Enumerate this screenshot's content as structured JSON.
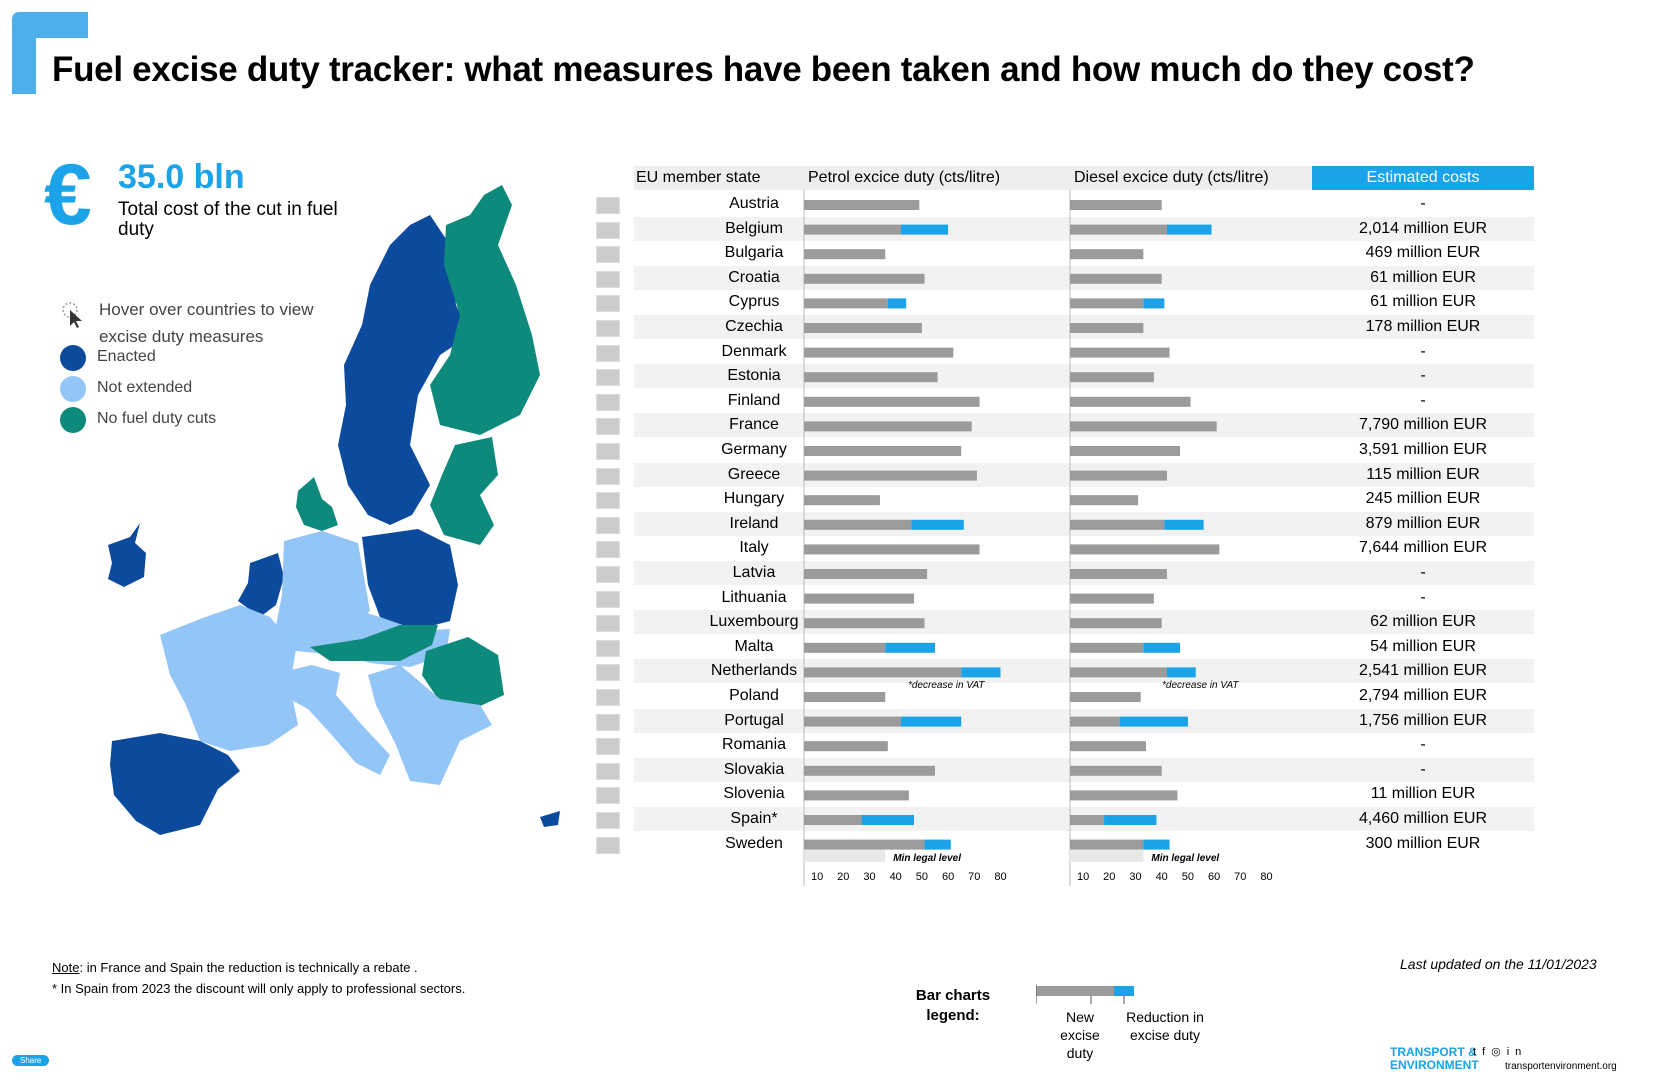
{
  "header": {
    "title": "Fuel excise duty tracker: what measures have been taken and how much do they cost?"
  },
  "summary": {
    "total_value": "35.0 bln",
    "total_label": "Total cost of the cut in fuel duty"
  },
  "map_legend": {
    "hover_text": "Hover over countries to view excise duty measures",
    "items": [
      {
        "label": "Enacted",
        "color": "#0b4a9c"
      },
      {
        "label": "Not extended",
        "color": "#93c5f7"
      },
      {
        "label": "No fuel duty cuts",
        "color": "#0e8a7c"
      }
    ]
  },
  "table": {
    "headers": {
      "country": "EU member state",
      "petrol": "Petrol excice duty (cts/litre)",
      "diesel": "Diesel excice duty (cts/litre)",
      "cost": "Estimated costs"
    },
    "rows": [
      {
        "country": "Austria",
        "cost": "-"
      },
      {
        "country": "Belgium",
        "cost": "2,014 million EUR"
      },
      {
        "country": "Bulgaria",
        "cost": "469 million EUR"
      },
      {
        "country": "Croatia",
        "cost": "61 million EUR"
      },
      {
        "country": "Cyprus",
        "cost": "61 million EUR"
      },
      {
        "country": "Czechia",
        "cost": "178 million EUR"
      },
      {
        "country": "Denmark",
        "cost": "-"
      },
      {
        "country": "Estonia",
        "cost": "-"
      },
      {
        "country": "Finland",
        "cost": "-"
      },
      {
        "country": "France",
        "cost": "7,790 million EUR"
      },
      {
        "country": "Germany",
        "cost": "3,591 million EUR"
      },
      {
        "country": "Greece",
        "cost": "115 million EUR"
      },
      {
        "country": "Hungary",
        "cost": "245 million EUR"
      },
      {
        "country": "Ireland",
        "cost": "879 million EUR"
      },
      {
        "country": "Italy",
        "cost": "7,644 million EUR"
      },
      {
        "country": "Latvia",
        "cost": "-"
      },
      {
        "country": "Lithuania",
        "cost": "-"
      },
      {
        "country": "Luxembourg",
        "cost": "62 million EUR"
      },
      {
        "country": "Malta",
        "cost": "54 million EUR"
      },
      {
        "country": "Netherlands",
        "cost": "2,541 million EUR"
      },
      {
        "country": "Poland",
        "cost": "2,794 million EUR"
      },
      {
        "country": "Portugal",
        "cost": "1,756 million EUR"
      },
      {
        "country": "Romania",
        "cost": "-"
      },
      {
        "country": "Slovakia",
        "cost": "-"
      },
      {
        "country": "Slovenia",
        "cost": "11 million EUR"
      },
      {
        "country": "Spain*",
        "cost": "4,460 million EUR"
      },
      {
        "country": "Sweden",
        "cost": "300 million EUR"
      }
    ],
    "vat_note": "*decrease in VAT",
    "min_legal_level_label": "Min legal level"
  },
  "chart_data": {
    "type": "bar",
    "categories": [
      "Austria",
      "Belgium",
      "Bulgaria",
      "Croatia",
      "Cyprus",
      "Czechia",
      "Denmark",
      "Estonia",
      "Finland",
      "France",
      "Germany",
      "Greece",
      "Hungary",
      "Ireland",
      "Italy",
      "Latvia",
      "Lithuania",
      "Luxembourg",
      "Malta",
      "Netherlands",
      "Poland",
      "Portugal",
      "Romania",
      "Slovakia",
      "Slovenia",
      "Spain*",
      "Sweden"
    ],
    "panels": [
      {
        "title": "Petrol excice duty (cts/litre)",
        "min_legal_level": 36,
        "xlim": [
          5,
          85
        ],
        "xticks": [
          10,
          20,
          30,
          40,
          50,
          60,
          70,
          80
        ],
        "series": [
          {
            "name": "New excise duty",
            "values": [
              49,
              42,
              36,
              51,
              37,
              50,
              62,
              56,
              72,
              69,
              65,
              71,
              34,
              46,
              72,
              52,
              47,
              51,
              36,
              65,
              36,
              42,
              37,
              55,
              45,
              27,
              51
            ]
          },
          {
            "name": "Reduction in excise duty",
            "values": [
              0,
              18,
              0,
              0,
              7,
              0,
              0,
              0,
              0,
              0,
              0,
              0,
              0,
              20,
              0,
              0,
              0,
              0,
              19,
              15,
              0,
              23,
              0,
              0,
              0,
              20,
              10
            ]
          }
        ]
      },
      {
        "title": "Diesel excice duty (cts/litre)",
        "min_legal_level": 33,
        "xlim": [
          5,
          85
        ],
        "xticks": [
          10,
          20,
          30,
          40,
          50,
          60,
          70,
          80
        ],
        "series": [
          {
            "name": "New excise duty",
            "values": [
              40,
              42,
              33,
              40,
              33,
              33,
              43,
              37,
              51,
              61,
              47,
              42,
              31,
              41,
              62,
              42,
              37,
              40,
              33,
              42,
              32,
              24,
              34,
              40,
              46,
              18,
              33
            ]
          },
          {
            "name": "Reduction in excise duty",
            "values": [
              0,
              17,
              0,
              0,
              8,
              0,
              0,
              0,
              0,
              0,
              0,
              0,
              0,
              15,
              0,
              0,
              0,
              0,
              14,
              11,
              0,
              26,
              0,
              0,
              0,
              20,
              10
            ]
          }
        ]
      }
    ]
  },
  "bar_legend": {
    "title": "Bar charts legend:",
    "new_label": "New excise duty",
    "reduction_label": "Reduction in excise duty"
  },
  "notes": {
    "note_prefix": "Note",
    "note_text": ": in France and Spain the reduction is technically a rebate .",
    "spain_note": "* In Spain from 2023 the discount will only apply to professional sectors."
  },
  "updated": "Last updated on the 11/01/2023",
  "footer": {
    "share": "Share",
    "brand_line1": "TRANSPORT &",
    "brand_line2": "ENVIRONMENT",
    "website": "transportenvironment.org"
  }
}
